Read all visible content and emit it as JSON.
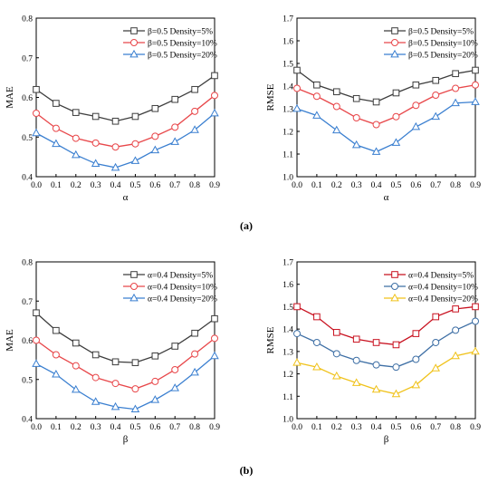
{
  "figure": {
    "label_a": "(a)",
    "label_b": "(b)"
  },
  "colors": {
    "black": "#3d3d3d",
    "red": "#e8474a",
    "blue": "#3a7fd0",
    "blue2": "#3e6fa5",
    "yellow": "#f0c21a",
    "darkred": "#c8101e"
  },
  "chart_data": [
    {
      "id": "a-left",
      "type": "line",
      "xlabel": "α",
      "ylabel": "MAE",
      "xlim": [
        0,
        0.9
      ],
      "ylim": [
        0.4,
        0.8
      ],
      "xticks": [
        "0.0",
        "0.1",
        "0.2",
        "0.3",
        "0.4",
        "0.5",
        "0.6",
        "0.7",
        "0.8",
        "0.9"
      ],
      "yticks": [
        "0.4",
        "0.5",
        "0.6",
        "0.7",
        "0.8"
      ],
      "legend_position": "top-right",
      "x": [
        0,
        0.1,
        0.2,
        0.3,
        0.4,
        0.5,
        0.6,
        0.7,
        0.8,
        0.9
      ],
      "series": [
        {
          "name": "β=0.5 Density=5%",
          "color": "#3d3d3d",
          "marker": "square",
          "values": [
            0.62,
            0.585,
            0.562,
            0.552,
            0.54,
            0.552,
            0.572,
            0.595,
            0.62,
            0.655
          ]
        },
        {
          "name": "β=0.5 Density=10%",
          "color": "#e8474a",
          "marker": "circle",
          "values": [
            0.56,
            0.522,
            0.497,
            0.485,
            0.475,
            0.483,
            0.502,
            0.525,
            0.565,
            0.605
          ]
        },
        {
          "name": "β=0.5 Density=20%",
          "color": "#3a7fd0",
          "marker": "triangle",
          "values": [
            0.51,
            0.483,
            0.455,
            0.433,
            0.423,
            0.44,
            0.467,
            0.488,
            0.518,
            0.56
          ]
        }
      ]
    },
    {
      "id": "a-right",
      "type": "line",
      "xlabel": "α",
      "ylabel": "RMSE",
      "xlim": [
        0,
        0.9
      ],
      "ylim": [
        1.0,
        1.7
      ],
      "xticks": [
        "0.0",
        "0.1",
        "0.2",
        "0.3",
        "0.4",
        "0.5",
        "0.6",
        "0.7",
        "0.8",
        "0.9"
      ],
      "yticks": [
        "1.0",
        "1.1",
        "1.2",
        "1.3",
        "1.4",
        "1.5",
        "1.6",
        "1.7"
      ],
      "legend_position": "top-right",
      "x": [
        0,
        0.1,
        0.2,
        0.3,
        0.4,
        0.5,
        0.6,
        0.7,
        0.8,
        0.9
      ],
      "series": [
        {
          "name": "β=0.5 Density=5%",
          "color": "#3d3d3d",
          "marker": "square",
          "values": [
            1.47,
            1.405,
            1.375,
            1.345,
            1.33,
            1.37,
            1.405,
            1.425,
            1.455,
            1.47
          ]
        },
        {
          "name": "β=0.5 Density=10%",
          "color": "#e8474a",
          "marker": "circle",
          "values": [
            1.39,
            1.355,
            1.31,
            1.26,
            1.23,
            1.265,
            1.315,
            1.36,
            1.39,
            1.405
          ]
        },
        {
          "name": "β=0.5 Density=20%",
          "color": "#3a7fd0",
          "marker": "triangle",
          "values": [
            1.3,
            1.27,
            1.205,
            1.14,
            1.11,
            1.15,
            1.22,
            1.265,
            1.325,
            1.33
          ]
        }
      ]
    },
    {
      "id": "b-left",
      "type": "line",
      "xlabel": "β",
      "ylabel": "MAE",
      "xlim": [
        0,
        0.9
      ],
      "ylim": [
        0.4,
        0.8
      ],
      "xticks": [
        "0.0",
        "0.1",
        "0.2",
        "0.3",
        "0.4",
        "0.5",
        "0.6",
        "0.7",
        "0.8",
        "0.9"
      ],
      "yticks": [
        "0.4",
        "0.5",
        "0.6",
        "0.7",
        "0.8"
      ],
      "legend_position": "top-right",
      "x": [
        0,
        0.1,
        0.2,
        0.3,
        0.4,
        0.5,
        0.6,
        0.7,
        0.8,
        0.9
      ],
      "series": [
        {
          "name": "α=0.4 Density=5%",
          "color": "#3d3d3d",
          "marker": "square",
          "values": [
            0.67,
            0.625,
            0.593,
            0.563,
            0.545,
            0.543,
            0.56,
            0.585,
            0.618,
            0.655
          ]
        },
        {
          "name": "α=0.4 Density=10%",
          "color": "#e8474a",
          "marker": "circle",
          "values": [
            0.6,
            0.563,
            0.535,
            0.505,
            0.49,
            0.476,
            0.495,
            0.525,
            0.565,
            0.605
          ]
        },
        {
          "name": "α=0.4 Density=20%",
          "color": "#3a7fd0",
          "marker": "triangle",
          "values": [
            0.54,
            0.513,
            0.474,
            0.443,
            0.43,
            0.424,
            0.448,
            0.478,
            0.518,
            0.56
          ]
        }
      ]
    },
    {
      "id": "b-right",
      "type": "line",
      "xlabel": "β",
      "ylabel": "RMSE",
      "xlim": [
        0,
        0.9
      ],
      "ylim": [
        1.0,
        1.7
      ],
      "xticks": [
        "0.0",
        "0.1",
        "0.2",
        "0.3",
        "0.4",
        "0.5",
        "0.6",
        "0.7",
        "0.8",
        "0.9"
      ],
      "yticks": [
        "1.0",
        "1.1",
        "1.2",
        "1.3",
        "1.4",
        "1.5",
        "1.6",
        "1.7"
      ],
      "legend_position": "top-right",
      "x": [
        0,
        0.1,
        0.2,
        0.3,
        0.4,
        0.5,
        0.6,
        0.7,
        0.8,
        0.9
      ],
      "series": [
        {
          "name": "α=0.4 Density=5%",
          "color": "#c8101e",
          "marker": "square",
          "values": [
            1.5,
            1.455,
            1.385,
            1.355,
            1.34,
            1.33,
            1.38,
            1.455,
            1.49,
            1.5
          ]
        },
        {
          "name": "α=0.4 Density=10%",
          "color": "#3e6fa5",
          "marker": "circle",
          "values": [
            1.38,
            1.34,
            1.29,
            1.26,
            1.24,
            1.23,
            1.265,
            1.34,
            1.395,
            1.435
          ]
        },
        {
          "name": "α=0.4 Density=20%",
          "color": "#f0c21a",
          "marker": "triangle",
          "values": [
            1.25,
            1.23,
            1.19,
            1.16,
            1.13,
            1.11,
            1.15,
            1.225,
            1.28,
            1.3
          ]
        }
      ]
    }
  ]
}
